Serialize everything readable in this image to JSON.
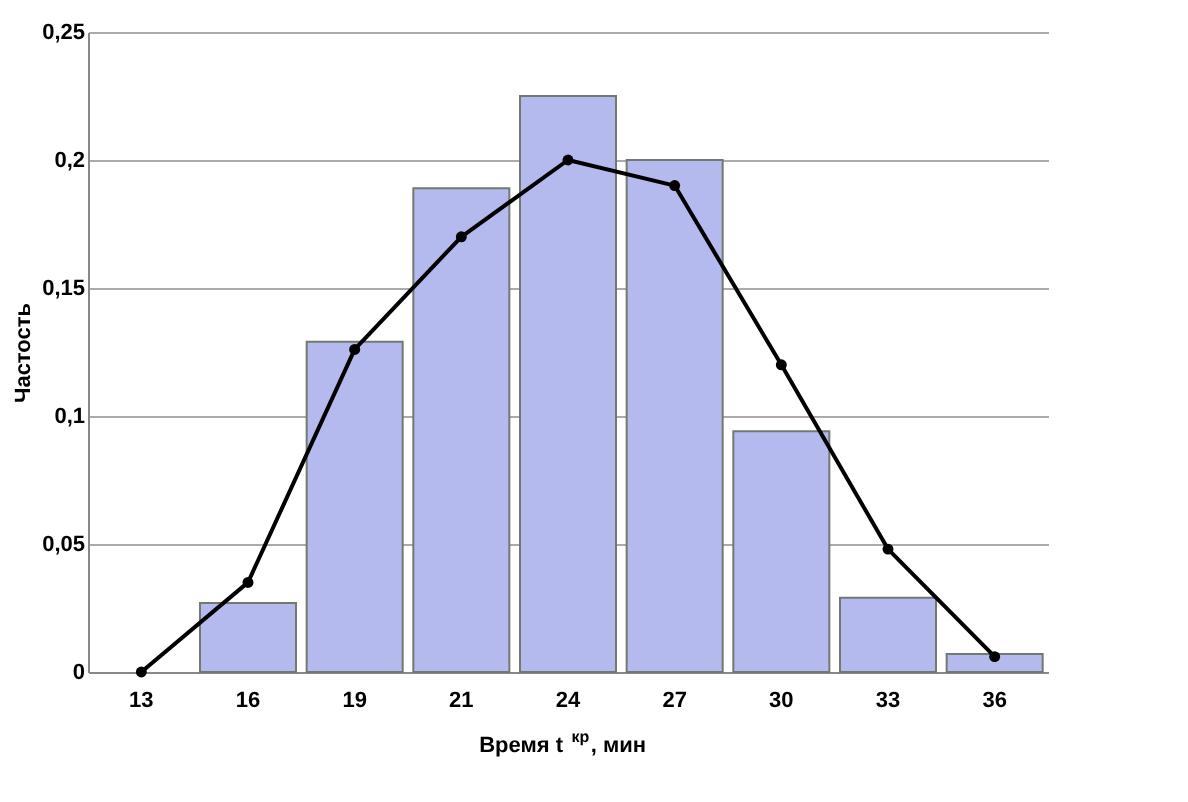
{
  "chart_data": {
    "type": "bar",
    "xlabel": "Время t$^{кр}$, мин",
    "ylabel": "Частость",
    "categories": [
      "13",
      "16",
      "19",
      "21",
      "24",
      "27",
      "30",
      "33",
      "36"
    ],
    "series": [
      {
        "color": "#b4b9ee",
        "values": [
          null,
          0.027,
          0.129,
          0.189,
          0.225,
          0.2,
          0.094,
          0.029,
          0.007
        ]
      },
      {
        "type": "line",
        "color": "#000000",
        "marker": "circle",
        "values": [
          0,
          0.035,
          0.126,
          0.17,
          0.2,
          0.19,
          0.12,
          0.048,
          0.006
        ]
      }
    ],
    "ylim": [
      0,
      0.25
    ],
    "yticks": [
      0,
      {
        "value": 0.05,
        "label": "0,05"
      },
      {
        "value": 0.1,
        "label": "0,1"
      },
      {
        "value": 0.15,
        "label": "0,15"
      },
      {
        "value": 0.2,
        "label": "0,2"
      },
      {
        "value": 0.25,
        "label": "0,25"
      }
    ],
    "grid": "y"
  }
}
